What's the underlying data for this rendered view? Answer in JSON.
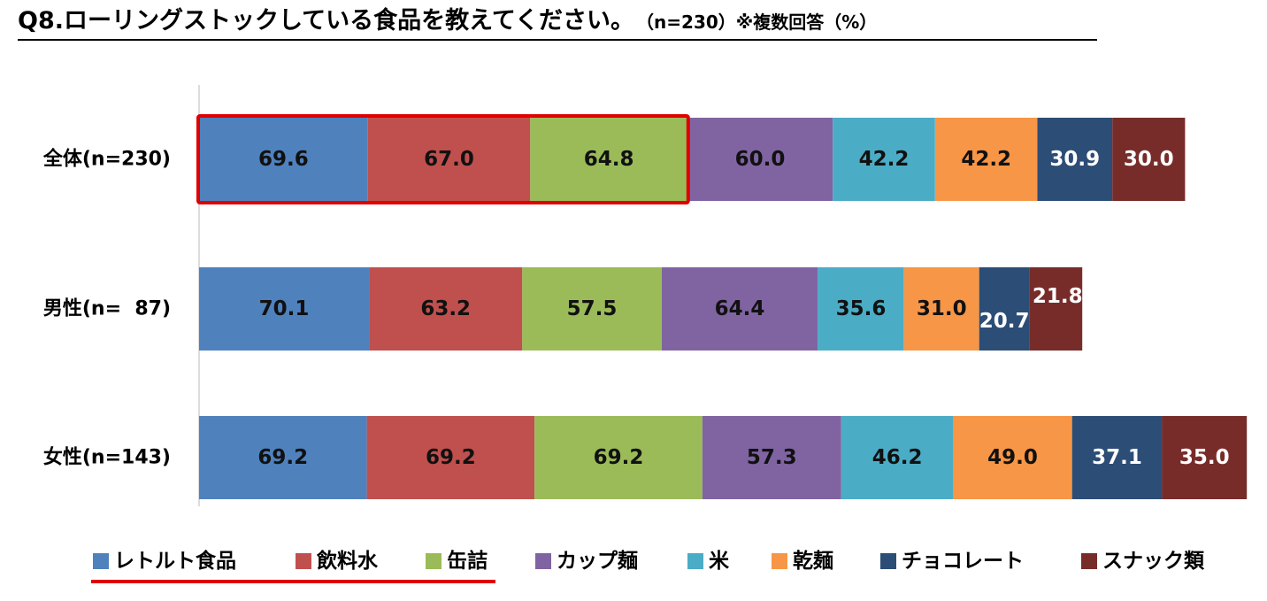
{
  "chart_data": {
    "type": "bar",
    "orientation": "horizontal",
    "stacked": true,
    "title": "Q8.ローリングストックしている食品を教えてください。",
    "title_note": "（n=230）※複数回答（%）",
    "categories": [
      "全体(n=230)",
      "男性(n=  87)",
      "女性(n=143)"
    ],
    "series": [
      {
        "name": "レトルト食品",
        "color": "#4F81BD",
        "values": [
          69.6,
          70.1,
          69.2
        ]
      },
      {
        "name": "飲料水",
        "color": "#C0504D",
        "values": [
          67.0,
          63.2,
          69.2
        ]
      },
      {
        "name": "缶詰",
        "color": "#9BBB59",
        "values": [
          64.8,
          57.5,
          69.2
        ]
      },
      {
        "name": "カップ麺",
        "color": "#8064A2",
        "values": [
          60.0,
          64.4,
          57.3
        ]
      },
      {
        "name": "米",
        "color": "#4BACC6",
        "values": [
          42.2,
          35.6,
          46.2
        ]
      },
      {
        "name": "乾麺",
        "color": "#F79646",
        "values": [
          42.2,
          31.0,
          49.0
        ]
      },
      {
        "name": "チョコレート",
        "color": "#2C4D75",
        "values": [
          30.9,
          20.7,
          37.1
        ]
      },
      {
        "name": "スナック類",
        "color": "#772C2A",
        "values": [
          30.0,
          21.8,
          35.0
        ]
      }
    ],
    "label_colors": {
      "dark": "#111111",
      "light": "#ffffff"
    },
    "highlight": {
      "row": 0,
      "series_from": 0,
      "series_to": 2,
      "color": "#E00000"
    },
    "legend_underline": {
      "series_from": 0,
      "series_to": 2,
      "color": "#E00000"
    },
    "legend_position": "bottom",
    "grid": false
  }
}
